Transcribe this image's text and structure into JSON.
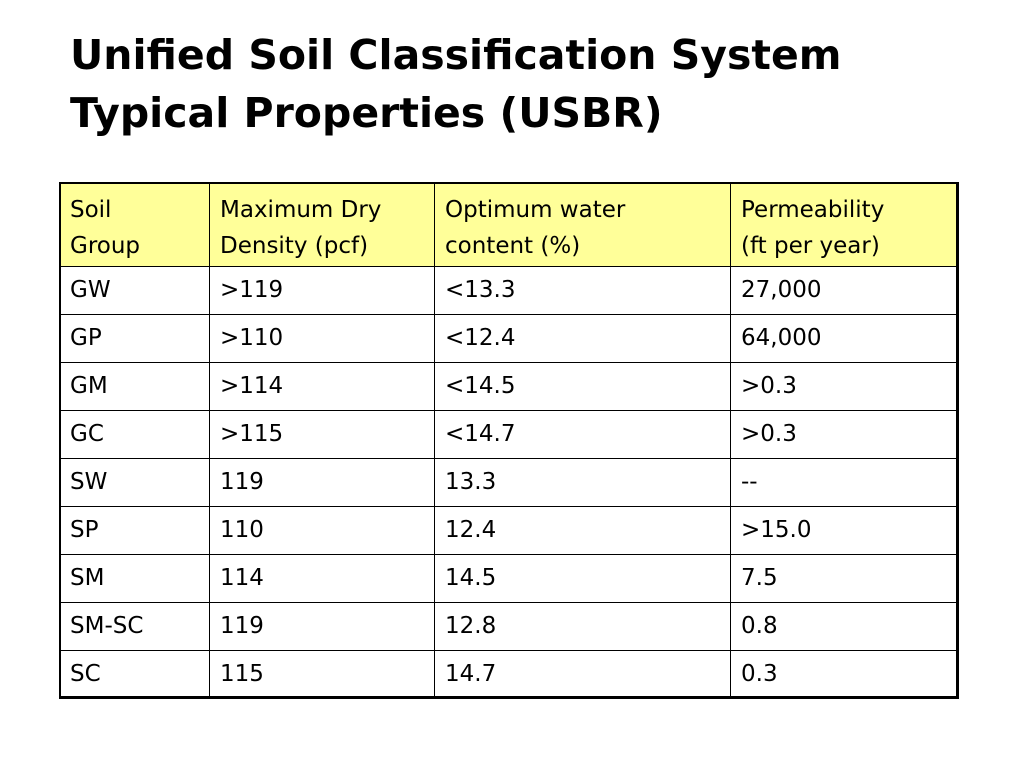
{
  "title": {
    "line1": "Unified Soil Classification System",
    "line2": "Typical Properties (USBR)"
  },
  "table": {
    "headers": [
      {
        "line1": "Soil",
        "line2": "Group"
      },
      {
        "line1": "Maximum Dry",
        "line2": "Density (pcf)"
      },
      {
        "line1": "Optimum water",
        "line2": "content (%)"
      },
      {
        "line1": "Permeability",
        "line2": "(ft per year)"
      }
    ],
    "header_color": "#ffff99",
    "rows": [
      [
        "GW",
        ">119",
        "<13.3",
        "27,000"
      ],
      [
        "GP",
        ">110",
        "<12.4",
        "64,000"
      ],
      [
        "GM",
        ">114",
        "<14.5",
        ">0.3"
      ],
      [
        "GC",
        ">115",
        "<14.7",
        ">0.3"
      ],
      [
        "SW",
        "119",
        "13.3",
        "--"
      ],
      [
        "SP",
        "110",
        "12.4",
        ">15.0"
      ],
      [
        "SM",
        "114",
        "14.5",
        "7.5"
      ],
      [
        "SM-SC",
        "119",
        "12.8",
        "0.8"
      ],
      [
        "SC",
        "115",
        "14.7",
        "0.3"
      ]
    ]
  }
}
